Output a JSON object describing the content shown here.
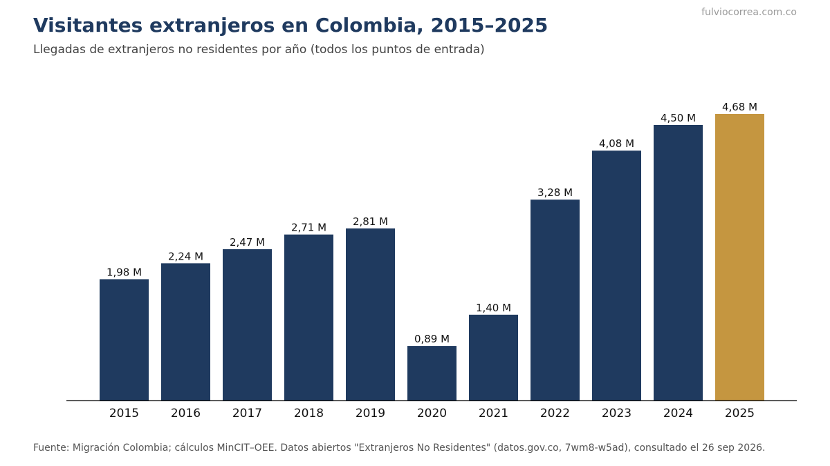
{
  "header": {
    "title": "Visitantes extranjeros en Colombia, 2015–2025",
    "subtitle": "Llegadas de extranjeros no residentes por año (todos los puntos de entrada)",
    "watermark": "fulviocorrea.com.co"
  },
  "footer": {
    "source": "Fuente: Migración Colombia; cálculos MinCIT–OEE. Datos abiertos \"Extranjeros No Residentes\" (datos.gov.co, 7wm8-w5ad), consultado el 26 sep 2026."
  },
  "colors": {
    "bar": "#1f3a5f",
    "highlight": "#c59640",
    "axis": "#111111"
  },
  "chart_data": {
    "type": "bar",
    "categories": [
      "2015",
      "2016",
      "2017",
      "2018",
      "2019",
      "2020",
      "2021",
      "2022",
      "2023",
      "2024",
      "2025"
    ],
    "values": [
      1.98,
      2.24,
      2.47,
      2.71,
      2.81,
      0.89,
      1.4,
      3.28,
      4.08,
      4.5,
      4.68
    ],
    "data_labels": [
      "1,98 M",
      "2,24 M",
      "2,47 M",
      "2,71 M",
      "2,81 M",
      "0,89 M",
      "1,40 M",
      "3,28 M",
      "4,08 M",
      "4,50 M",
      "4,68 M"
    ],
    "highlight_category": "2025",
    "title": "Visitantes extranjeros en Colombia, 2015–2025",
    "xlabel": "",
    "ylabel": "",
    "ylim": [
      0,
      4.68
    ],
    "grid": false,
    "legend": "none"
  }
}
